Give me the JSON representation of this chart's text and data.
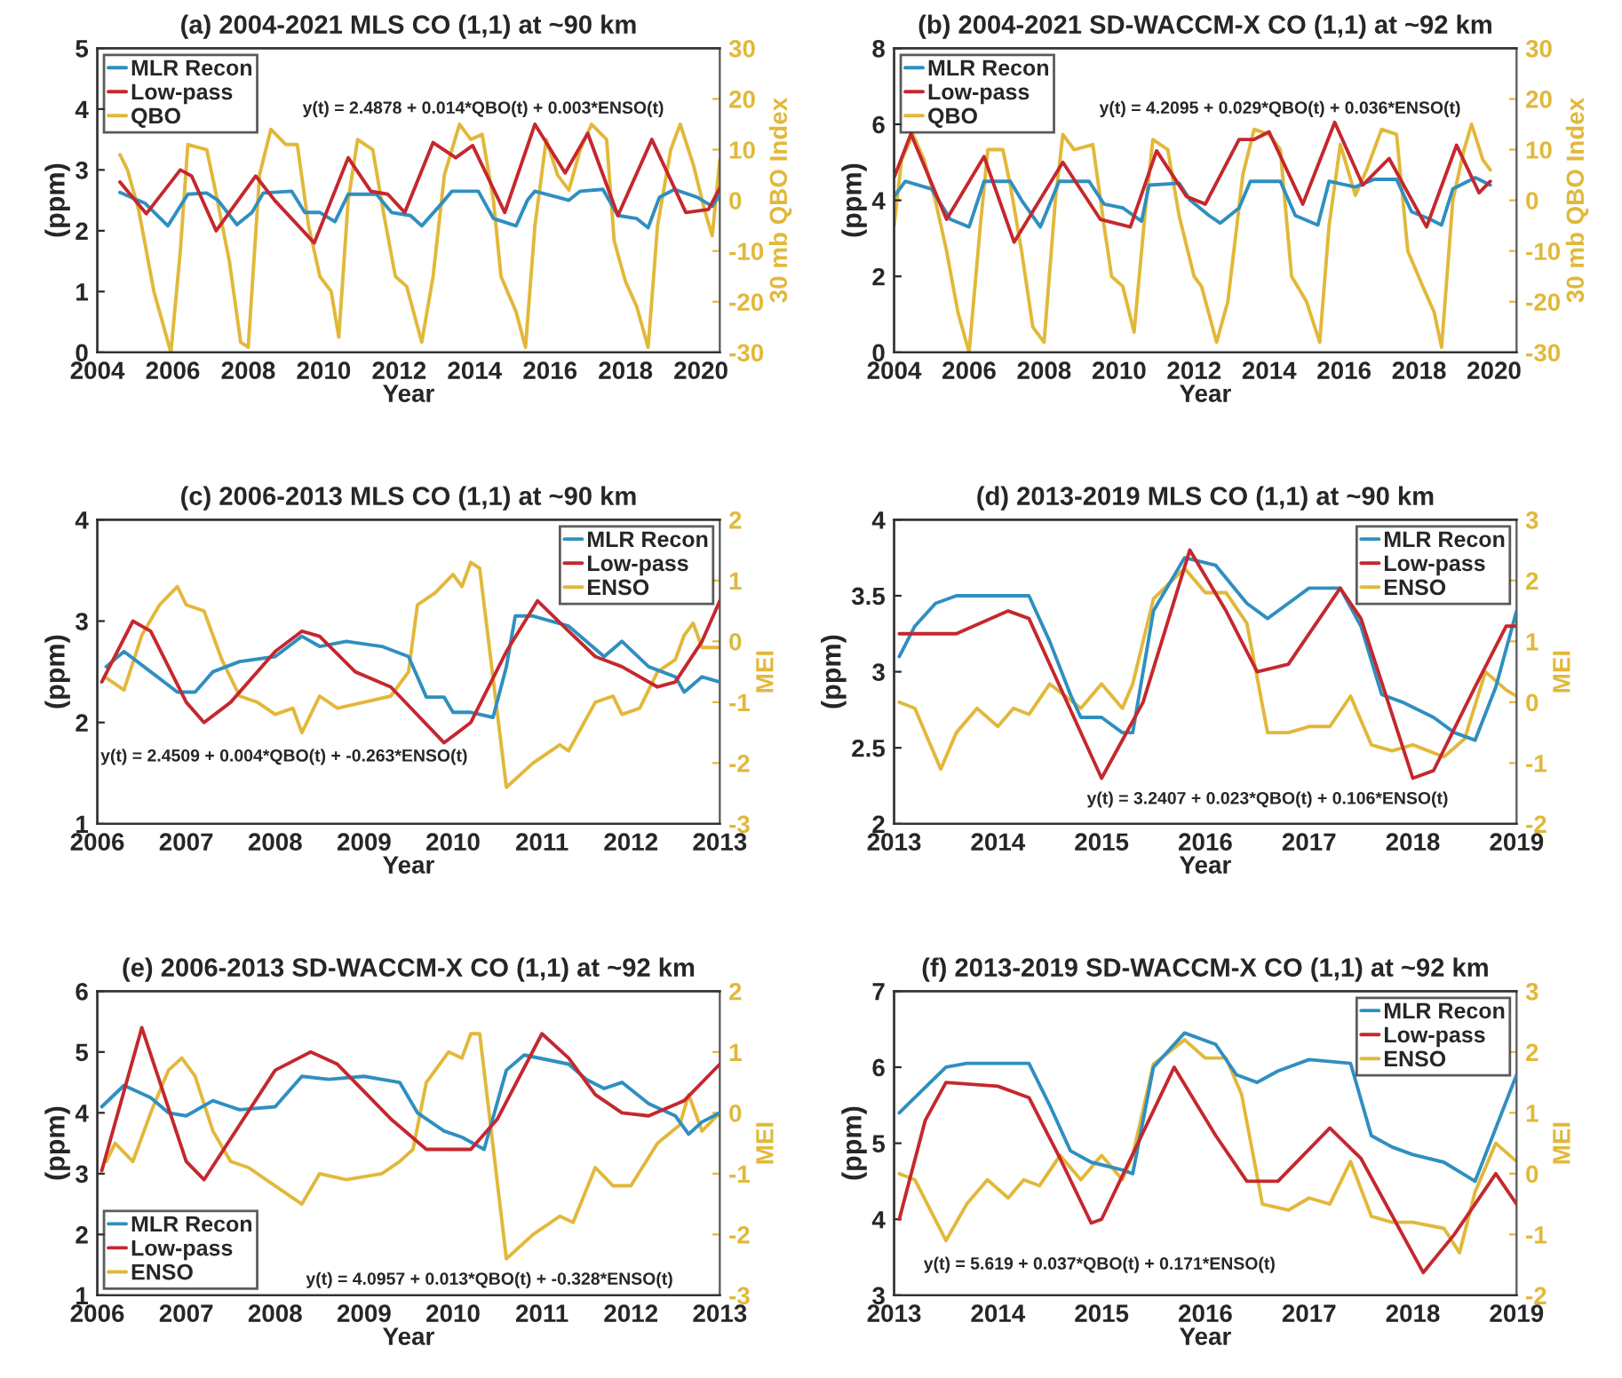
{
  "chart_data": [
    {
      "type": "line",
      "title": "(a) 2004-2021 MLS CO (1,1) at ~90 km",
      "xlabel": "Year",
      "ylabel": "(ppm)",
      "y2label": "30 mb QBO Index",
      "xlim": [
        2004,
        2020.5
      ],
      "xticks": [
        2004,
        2006,
        2008,
        2010,
        2012,
        2014,
        2016,
        2018,
        2020
      ],
      "ylim": [
        0,
        5
      ],
      "yticks": [
        0,
        1,
        2,
        3,
        4,
        5
      ],
      "y2lim": [
        -30,
        30
      ],
      "y2ticks": [
        -30,
        -20,
        -10,
        0,
        10,
        20,
        30
      ],
      "legend": "top left",
      "line_style": "solid",
      "annotations": [
        "y(t) = 2.4878 + 0.014*QBO(t) + 0.003*ENSO(t)"
      ],
      "series": [
        {
          "name": "MLR Recon",
          "color": "#2f8fc0",
          "x": [
            2004.6,
            2005.27,
            2005.87,
            2006.4,
            2006.9,
            2007.2,
            2007.7,
            2008.1,
            2008.4,
            2009.15,
            2009.5,
            2009.9,
            2010.3,
            2010.65,
            2011.4,
            2011.8,
            2012.3,
            2012.6,
            2013.2,
            2013.4,
            2014.1,
            2014.5,
            2015.1,
            2015.4,
            2015.6,
            2016.2,
            2016.5,
            2016.8,
            2017.4,
            2017.8,
            2018.3,
            2018.6,
            2018.9,
            2019.3,
            2019.9,
            2020.3,
            2020.5
          ],
          "values": [
            2.63,
            2.45,
            2.08,
            2.6,
            2.62,
            2.5,
            2.1,
            2.3,
            2.62,
            2.65,
            2.3,
            2.3,
            2.15,
            2.6,
            2.6,
            2.3,
            2.25,
            2.08,
            2.5,
            2.65,
            2.65,
            2.2,
            2.08,
            2.5,
            2.65,
            2.55,
            2.5,
            2.65,
            2.68,
            2.25,
            2.2,
            2.05,
            2.55,
            2.68,
            2.55,
            2.4,
            2.6
          ]
        },
        {
          "name": "Low-pass",
          "color": "#c4282e",
          "x": [
            2004.6,
            2005.3,
            2006.2,
            2006.5,
            2007.15,
            2008.2,
            2008.7,
            2009.75,
            2010.65,
            2011.25,
            2011.7,
            2012.15,
            2012.9,
            2013.5,
            2013.95,
            2014.8,
            2015.6,
            2016.4,
            2017.0,
            2017.8,
            2018.7,
            2019.6,
            2020.2,
            2020.5
          ],
          "values": [
            2.8,
            2.28,
            3.0,
            2.9,
            2.0,
            2.9,
            2.5,
            1.8,
            3.2,
            2.65,
            2.6,
            2.3,
            3.45,
            3.2,
            3.4,
            2.3,
            3.75,
            2.95,
            3.6,
            2.25,
            3.5,
            2.3,
            2.35,
            2.7
          ]
        },
        {
          "name": "QBO",
          "color": "#e2b83a",
          "axis": "y2",
          "x": [
            2004.6,
            2004.8,
            2005.1,
            2005.5,
            2005.95,
            2006.2,
            2006.4,
            2006.9,
            2007.1,
            2007.5,
            2007.8,
            2008.0,
            2008.3,
            2008.6,
            2009.0,
            2009.3,
            2009.6,
            2009.9,
            2010.2,
            2010.4,
            2010.65,
            2010.9,
            2011.3,
            2011.6,
            2011.9,
            2012.2,
            2012.6,
            2012.9,
            2013.2,
            2013.6,
            2013.9,
            2014.2,
            2014.5,
            2014.7,
            2015.1,
            2015.35,
            2015.6,
            2015.9,
            2016.2,
            2016.5,
            2016.8,
            2017.1,
            2017.5,
            2017.7,
            2018.0,
            2018.3,
            2018.6,
            2018.85,
            2019.2,
            2019.45,
            2019.8,
            2020.1,
            2020.3,
            2020.5
          ],
          "values": [
            9,
            6,
            -2,
            -18,
            -30,
            -10,
            11,
            10,
            3,
            -12,
            -28,
            -29,
            5,
            14,
            11,
            11,
            -5,
            -15,
            -18,
            -27,
            0,
            12,
            10,
            -3,
            -15,
            -17,
            -28,
            -15,
            5,
            15,
            12,
            13,
            0,
            -15,
            -22,
            -29,
            -5,
            12,
            5,
            2,
            10,
            15,
            12,
            -8,
            -16,
            -21,
            -29,
            -5,
            10,
            15,
            7,
            -2,
            -7,
            8
          ]
        }
      ]
    },
    {
      "type": "line",
      "title": "(b) 2004-2021 SD-WACCM-X CO (1,1) at ~92 km",
      "xlabel": "Year",
      "ylabel": "(ppm)",
      "y2label": "30 mb QBO Index",
      "xlim": [
        2004,
        2020.6
      ],
      "xticks": [
        2004,
        2006,
        2008,
        2010,
        2012,
        2014,
        2016,
        2018,
        2020
      ],
      "ylim": [
        0,
        8
      ],
      "yticks": [
        0,
        2,
        4,
        6,
        8
      ],
      "y2lim": [
        -30,
        30
      ],
      "y2ticks": [
        -30,
        -20,
        -10,
        0,
        10,
        20,
        30
      ],
      "legend": "top left",
      "line_style": "solid",
      "annotations": [
        "y(t) = 4.2095 + 0.029*QBO(t) + 0.036*ENSO(t)"
      ],
      "series": [
        {
          "name": "MLR Recon",
          "color": "#2f8fc0",
          "x": [
            2004.0,
            2004.3,
            2005.0,
            2005.5,
            2006.0,
            2006.4,
            2007.1,
            2007.4,
            2007.9,
            2008.4,
            2009.2,
            2009.6,
            2010.1,
            2010.6,
            2010.8,
            2011.6,
            2011.9,
            2012.4,
            2012.7,
            2013.2,
            2013.5,
            2014.3,
            2014.7,
            2015.3,
            2015.6,
            2016.3,
            2016.8,
            2017.4,
            2017.8,
            2018.3,
            2018.6,
            2018.9,
            2019.5,
            2019.9
          ],
          "values": [
            4.1,
            4.5,
            4.3,
            3.5,
            3.3,
            4.5,
            4.5,
            4.0,
            3.3,
            4.5,
            4.5,
            3.9,
            3.8,
            3.45,
            4.4,
            4.45,
            4.0,
            3.6,
            3.4,
            3.8,
            4.5,
            4.5,
            3.6,
            3.35,
            4.5,
            4.35,
            4.55,
            4.55,
            3.7,
            3.5,
            3.35,
            4.3,
            4.6,
            4.4
          ]
        },
        {
          "name": "Low-pass",
          "color": "#c4282e",
          "x": [
            2004.0,
            2004.45,
            2005.4,
            2006.4,
            2007.2,
            2008.5,
            2009.5,
            2010.3,
            2011.0,
            2011.8,
            2012.3,
            2013.2,
            2013.6,
            2014.0,
            2014.9,
            2015.75,
            2016.5,
            2017.2,
            2018.2,
            2019.0,
            2019.6,
            2019.9
          ],
          "values": [
            4.6,
            5.75,
            3.5,
            5.15,
            2.9,
            5.0,
            3.5,
            3.3,
            5.3,
            4.1,
            3.9,
            5.6,
            5.6,
            5.8,
            3.9,
            6.05,
            4.4,
            5.1,
            3.3,
            5.45,
            4.2,
            4.5
          ]
        },
        {
          "name": "QBO",
          "color": "#e2b83a",
          "axis": "y2",
          "x": [
            2004.0,
            2004.2,
            2004.5,
            2004.8,
            2005.1,
            2005.4,
            2005.7,
            2006.0,
            2006.3,
            2006.5,
            2006.9,
            2007.1,
            2007.4,
            2007.7,
            2008.0,
            2008.3,
            2008.5,
            2008.8,
            2009.3,
            2009.6,
            2009.8,
            2010.1,
            2010.4,
            2010.7,
            2010.9,
            2011.3,
            2011.6,
            2012.0,
            2012.2,
            2012.6,
            2012.9,
            2013.3,
            2013.6,
            2014.0,
            2014.3,
            2014.6,
            2015.0,
            2015.35,
            2015.6,
            2015.9,
            2016.3,
            2016.6,
            2017.0,
            2017.4,
            2017.7,
            2018.1,
            2018.4,
            2018.6,
            2018.9,
            2019.2,
            2019.4,
            2019.7,
            2019.9
          ],
          "values": [
            -5,
            8,
            13,
            8,
            0,
            -10,
            -22,
            -30,
            -5,
            10,
            10,
            3,
            -10,
            -25,
            -28,
            0,
            13,
            10,
            11,
            -5,
            -15,
            -17,
            -26,
            -2,
            12,
            10,
            -3,
            -15,
            -17,
            -28,
            -20,
            5,
            14,
            13,
            10,
            -15,
            -20,
            -28,
            -5,
            11,
            1,
            6,
            14,
            13,
            -10,
            -17,
            -22,
            -29,
            0,
            10,
            15,
            8,
            6
          ]
        }
      ]
    },
    {
      "type": "line",
      "title": "(c) 2006-2013 MLS CO (1,1) at ~90 km",
      "xlabel": "Year",
      "ylabel": "(ppm)",
      "y2label": "MEI",
      "xlim": [
        2006,
        2013
      ],
      "xticks": [
        2006,
        2007,
        2008,
        2009,
        2010,
        2011,
        2012,
        2013
      ],
      "ylim": [
        1,
        4
      ],
      "yticks": [
        1,
        2,
        3,
        4
      ],
      "y2lim": [
        -3,
        2
      ],
      "y2ticks": [
        -3,
        -2,
        -1,
        0,
        1,
        2
      ],
      "legend": "top right",
      "line_style": "solid",
      "annotations": [
        "y(t) = 2.4509 + 0.004*QBO(t) + -0.263*ENSO(t)"
      ],
      "series": [
        {
          "name": "MLR Recon",
          "color": "#2f8fc0",
          "x": [
            2006.1,
            2006.3,
            2006.6,
            2006.9,
            2007.1,
            2007.3,
            2007.6,
            2008.0,
            2008.3,
            2008.5,
            2008.8,
            2009.2,
            2009.5,
            2009.7,
            2009.9,
            2010.0,
            2010.2,
            2010.45,
            2010.6,
            2010.7,
            2010.9,
            2011.3,
            2011.7,
            2011.9,
            2012.2,
            2012.5,
            2012.6,
            2012.8,
            2013.0
          ],
          "values": [
            2.55,
            2.7,
            2.5,
            2.3,
            2.3,
            2.5,
            2.6,
            2.65,
            2.85,
            2.75,
            2.8,
            2.75,
            2.65,
            2.25,
            2.25,
            2.1,
            2.1,
            2.05,
            2.55,
            3.05,
            3.05,
            2.95,
            2.65,
            2.8,
            2.55,
            2.45,
            2.3,
            2.45,
            2.4
          ]
        },
        {
          "name": "Low-pass",
          "color": "#c4282e",
          "x": [
            2006.05,
            2006.4,
            2006.6,
            2007.0,
            2007.2,
            2007.5,
            2008.0,
            2008.3,
            2008.5,
            2008.9,
            2009.3,
            2009.9,
            2010.2,
            2010.6,
            2010.95,
            2011.3,
            2011.6,
            2011.9,
            2012.3,
            2012.5,
            2012.8,
            2013.0
          ],
          "values": [
            2.4,
            3.0,
            2.9,
            2.2,
            2.0,
            2.2,
            2.7,
            2.9,
            2.85,
            2.5,
            2.35,
            1.8,
            2.0,
            2.7,
            3.2,
            2.9,
            2.65,
            2.55,
            2.35,
            2.4,
            2.8,
            3.2
          ]
        },
        {
          "name": "ENSO",
          "color": "#e2b83a",
          "axis": "y2",
          "x": [
            2006.1,
            2006.3,
            2006.5,
            2006.7,
            2006.9,
            2007.0,
            2007.2,
            2007.4,
            2007.6,
            2007.8,
            2008.0,
            2008.2,
            2008.3,
            2008.5,
            2008.7,
            2009.0,
            2009.3,
            2009.5,
            2009.6,
            2009.8,
            2010.0,
            2010.1,
            2010.2,
            2010.3,
            2010.6,
            2010.9,
            2011.2,
            2011.3,
            2011.6,
            2011.8,
            2011.9,
            2012.1,
            2012.3,
            2012.5,
            2012.6,
            2012.7,
            2012.8,
            2013.0
          ],
          "values": [
            -0.6,
            -0.8,
            0.1,
            0.6,
            0.9,
            0.6,
            0.5,
            -0.3,
            -0.9,
            -1.0,
            -1.2,
            -1.1,
            -1.5,
            -0.9,
            -1.1,
            -1.0,
            -0.9,
            -0.5,
            0.6,
            0.8,
            1.1,
            0.9,
            1.3,
            1.2,
            -2.4,
            -2.0,
            -1.7,
            -1.8,
            -1.0,
            -0.9,
            -1.2,
            -1.1,
            -0.5,
            -0.3,
            0.1,
            0.3,
            -0.1,
            -0.1
          ]
        }
      ]
    },
    {
      "type": "line",
      "title": "(d) 2013-2019 MLS CO (1,1) at ~90 km",
      "xlabel": "Year",
      "ylabel": "(ppm)",
      "y2label": "MEI",
      "xlim": [
        2013,
        2019
      ],
      "xticks": [
        2013,
        2014,
        2015,
        2016,
        2017,
        2018,
        2019
      ],
      "ylim": [
        2,
        4
      ],
      "yticks": [
        2,
        2.5,
        3,
        3.5,
        4
      ],
      "y2lim": [
        -2,
        3
      ],
      "y2ticks": [
        -2,
        -1,
        0,
        1,
        2,
        3
      ],
      "legend": "top right",
      "line_style": "solid",
      "annotations": [
        "y(t) = 3.2407 + 0.023*QBO(t) + 0.106*ENSO(t)"
      ],
      "series": [
        {
          "name": "MLR Recon",
          "color": "#2f8fc0",
          "x": [
            2013.05,
            2013.2,
            2013.4,
            2013.6,
            2013.8,
            2014.1,
            2014.3,
            2014.5,
            2014.7,
            2014.8,
            2015.0,
            2015.2,
            2015.3,
            2015.5,
            2015.8,
            2016.1,
            2016.4,
            2016.6,
            2016.8,
            2017.0,
            2017.3,
            2017.5,
            2017.7,
            2017.9,
            2018.2,
            2018.4,
            2018.6,
            2018.8,
            2019.0
          ],
          "values": [
            3.1,
            3.3,
            3.45,
            3.5,
            3.5,
            3.5,
            3.5,
            3.2,
            2.85,
            2.7,
            2.7,
            2.6,
            2.6,
            3.4,
            3.75,
            3.7,
            3.45,
            3.35,
            3.45,
            3.55,
            3.55,
            3.3,
            2.85,
            2.8,
            2.7,
            2.6,
            2.55,
            2.9,
            3.4
          ]
        },
        {
          "name": "Low-pass",
          "color": "#c4282e",
          "x": [
            2013.05,
            2013.6,
            2014.1,
            2014.3,
            2014.6,
            2015.0,
            2015.4,
            2015.85,
            2016.2,
            2016.5,
            2016.8,
            2017.3,
            2017.5,
            2018.0,
            2018.2,
            2018.6,
            2018.9,
            2019.0
          ],
          "values": [
            3.25,
            3.25,
            3.4,
            3.35,
            2.9,
            2.3,
            2.8,
            3.8,
            3.4,
            3.0,
            3.05,
            3.55,
            3.35,
            2.3,
            2.35,
            2.9,
            3.3,
            3.3
          ]
        },
        {
          "name": "ENSO",
          "color": "#e2b83a",
          "axis": "y2",
          "x": [
            2013.05,
            2013.2,
            2013.45,
            2013.6,
            2013.8,
            2014.0,
            2014.15,
            2014.3,
            2014.5,
            2014.8,
            2015.0,
            2015.2,
            2015.3,
            2015.5,
            2015.8,
            2016.0,
            2016.2,
            2016.4,
            2016.6,
            2016.8,
            2017.0,
            2017.2,
            2017.4,
            2017.6,
            2017.8,
            2018.0,
            2018.3,
            2018.5,
            2018.7,
            2018.9,
            2019.0
          ],
          "values": [
            0.0,
            -0.1,
            -1.1,
            -0.5,
            -0.1,
            -0.4,
            -0.1,
            -0.2,
            0.3,
            -0.1,
            0.3,
            -0.1,
            0.3,
            1.7,
            2.2,
            1.8,
            1.8,
            1.3,
            -0.5,
            -0.5,
            -0.4,
            -0.4,
            0.1,
            -0.7,
            -0.8,
            -0.7,
            -0.9,
            -0.6,
            0.5,
            0.2,
            0.1
          ]
        }
      ]
    },
    {
      "type": "line",
      "title": "(e) 2006-2013 SD-WACCM-X CO (1,1) at ~92 km",
      "xlabel": "Year",
      "ylabel": "(ppm)",
      "y2label": "MEI",
      "xlim": [
        2006,
        2013
      ],
      "xticks": [
        2006,
        2007,
        2008,
        2009,
        2010,
        2011,
        2012,
        2013
      ],
      "ylim": [
        1,
        6
      ],
      "yticks": [
        1,
        2,
        3,
        4,
        5,
        6
      ],
      "y2lim": [
        -3,
        2
      ],
      "y2ticks": [
        -3,
        -2,
        -1,
        0,
        1,
        2
      ],
      "legend": "bottom left",
      "line_style": "solid",
      "annotations": [
        "y(t) = 4.0957 + 0.013*QBO(t) + -0.328*ENSO(t)"
      ],
      "series": [
        {
          "name": "MLR Recon",
          "color": "#2f8fc0",
          "x": [
            2006.05,
            2006.3,
            2006.6,
            2006.8,
            2007.0,
            2007.3,
            2007.6,
            2008.0,
            2008.3,
            2008.6,
            2009.0,
            2009.4,
            2009.6,
            2009.9,
            2010.1,
            2010.35,
            2010.6,
            2010.8,
            2011.3,
            2011.5,
            2011.7,
            2011.9,
            2012.2,
            2012.5,
            2012.65,
            2012.8,
            2013.0
          ],
          "values": [
            4.1,
            4.45,
            4.25,
            4.0,
            3.95,
            4.2,
            4.05,
            4.1,
            4.6,
            4.55,
            4.6,
            4.5,
            4.0,
            3.7,
            3.6,
            3.4,
            4.7,
            4.95,
            4.8,
            4.55,
            4.4,
            4.5,
            4.15,
            3.95,
            3.65,
            3.85,
            4.0
          ]
        },
        {
          "name": "Low-pass",
          "color": "#c4282e",
          "x": [
            2006.05,
            2006.5,
            2007.0,
            2007.2,
            2007.6,
            2008.0,
            2008.4,
            2008.7,
            2009.3,
            2009.7,
            2010.2,
            2010.5,
            2011.0,
            2011.3,
            2011.6,
            2011.9,
            2012.2,
            2012.6,
            2013.0
          ],
          "values": [
            3.05,
            5.4,
            3.2,
            2.9,
            3.8,
            4.7,
            5.0,
            4.8,
            3.9,
            3.4,
            3.4,
            3.9,
            5.3,
            4.9,
            4.3,
            4.0,
            3.95,
            4.2,
            4.8
          ]
        },
        {
          "name": "ENSO",
          "color": "#e2b83a",
          "axis": "y2",
          "x": [
            2006.1,
            2006.2,
            2006.4,
            2006.6,
            2006.8,
            2006.95,
            2007.1,
            2007.3,
            2007.5,
            2007.7,
            2008.0,
            2008.3,
            2008.5,
            2008.8,
            2009.2,
            2009.4,
            2009.55,
            2009.7,
            2009.95,
            2010.1,
            2010.2,
            2010.3,
            2010.6,
            2010.9,
            2011.2,
            2011.35,
            2011.6,
            2011.8,
            2012.0,
            2012.3,
            2012.55,
            2012.65,
            2012.8,
            2013.0
          ],
          "values": [
            -0.8,
            -0.5,
            -0.8,
            0.0,
            0.7,
            0.9,
            0.6,
            -0.3,
            -0.8,
            -0.9,
            -1.2,
            -1.5,
            -1.0,
            -1.1,
            -1.0,
            -0.8,
            -0.6,
            0.5,
            1.0,
            0.9,
            1.3,
            1.3,
            -2.4,
            -2.0,
            -1.7,
            -1.8,
            -0.9,
            -1.2,
            -1.2,
            -0.5,
            -0.2,
            0.3,
            -0.3,
            0.0
          ]
        }
      ]
    },
    {
      "type": "line",
      "title": "(f) 2013-2019 SD-WACCM-X CO (1,1) at ~92 km",
      "xlabel": "Year",
      "ylabel": "(ppm)",
      "y2label": "MEI",
      "xlim": [
        2013,
        2019
      ],
      "xticks": [
        2013,
        2014,
        2015,
        2016,
        2017,
        2018,
        2019
      ],
      "ylim": [
        3,
        7
      ],
      "yticks": [
        3,
        4,
        5,
        6,
        7
      ],
      "y2lim": [
        -2,
        3
      ],
      "y2ticks": [
        -2,
        -1,
        0,
        1,
        2,
        3
      ],
      "legend": "top right",
      "line_style": "solid",
      "annotations": [
        "y(t) = 5.619 + 0.037*QBO(t) + 0.171*ENSO(t)"
      ],
      "series": [
        {
          "name": "MLR Recon",
          "color": "#2f8fc0",
          "x": [
            2013.05,
            2013.2,
            2013.5,
            2013.7,
            2014.0,
            2014.3,
            2014.5,
            2014.7,
            2014.9,
            2015.2,
            2015.3,
            2015.5,
            2015.8,
            2016.1,
            2016.3,
            2016.5,
            2016.7,
            2017.0,
            2017.4,
            2017.6,
            2017.8,
            2018.0,
            2018.3,
            2018.6,
            2018.8,
            2019.0
          ],
          "values": [
            5.4,
            5.6,
            6.0,
            6.05,
            6.05,
            6.05,
            5.5,
            4.9,
            4.75,
            4.65,
            4.6,
            6.0,
            6.45,
            6.3,
            5.9,
            5.8,
            5.95,
            6.1,
            6.05,
            5.1,
            4.95,
            4.85,
            4.75,
            4.5,
            5.2,
            5.9
          ]
        },
        {
          "name": "Low-pass",
          "color": "#c4282e",
          "x": [
            2013.05,
            2013.3,
            2013.5,
            2014.0,
            2014.3,
            2014.6,
            2014.9,
            2015.0,
            2015.7,
            2016.1,
            2016.4,
            2016.7,
            2017.2,
            2017.5,
            2018.1,
            2018.4,
            2018.8,
            2019.0
          ],
          "values": [
            4.0,
            5.3,
            5.8,
            5.75,
            5.6,
            4.8,
            3.95,
            4.0,
            6.0,
            5.1,
            4.5,
            4.5,
            5.2,
            4.8,
            3.3,
            3.8,
            4.6,
            4.2
          ]
        },
        {
          "name": "ENSO",
          "color": "#e2b83a",
          "axis": "y2",
          "x": [
            2013.05,
            2013.2,
            2013.5,
            2013.7,
            2013.9,
            2014.1,
            2014.25,
            2014.4,
            2014.6,
            2014.8,
            2015.0,
            2015.2,
            2015.3,
            2015.5,
            2015.8,
            2016.0,
            2016.2,
            2016.35,
            2016.55,
            2016.8,
            2017.0,
            2017.2,
            2017.4,
            2017.6,
            2017.8,
            2018.0,
            2018.3,
            2018.45,
            2018.6,
            2018.8,
            2019.0
          ],
          "values": [
            0.0,
            -0.1,
            -1.1,
            -0.5,
            -0.1,
            -0.4,
            -0.1,
            -0.2,
            0.3,
            -0.1,
            0.3,
            -0.1,
            0.3,
            1.8,
            2.2,
            1.9,
            1.9,
            1.3,
            -0.5,
            -0.6,
            -0.4,
            -0.5,
            0.2,
            -0.7,
            -0.8,
            -0.8,
            -0.9,
            -1.3,
            -0.3,
            0.5,
            0.2
          ]
        }
      ]
    }
  ]
}
